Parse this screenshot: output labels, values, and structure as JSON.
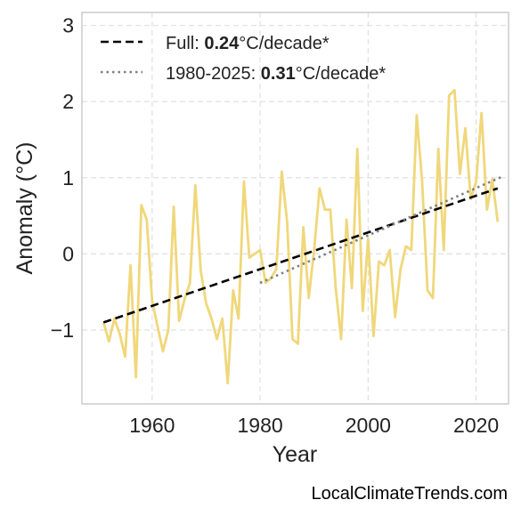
{
  "chart_data": {
    "type": "line",
    "xlabel": "Year",
    "ylabel": "Anomaly (°C)",
    "xlim": [
      1947,
      2026
    ],
    "ylim": [
      -1.97,
      3.17
    ],
    "xticks": [
      1960,
      1980,
      2000,
      2020
    ],
    "yticks": [
      3,
      2,
      1,
      0,
      -1
    ],
    "ytick_labels": [
      "3",
      "2",
      "1",
      "0",
      "−1"
    ],
    "grid": true,
    "legend_position": "top-left",
    "series": [
      {
        "style": "solid",
        "color": "#f0d77a",
        "x": [
          1951,
          1952,
          1953,
          1954,
          1955,
          1956,
          1957,
          1958,
          1959,
          1960,
          1961,
          1962,
          1963,
          1964,
          1965,
          1966,
          1967,
          1968,
          1969,
          1970,
          1971,
          1972,
          1973,
          1974,
          1975,
          1976,
          1977,
          1978,
          1979,
          1980,
          1981,
          1982,
          1983,
          1984,
          1985,
          1986,
          1987,
          1988,
          1989,
          1990,
          1991,
          1992,
          1993,
          1994,
          1995,
          1996,
          1997,
          1998,
          1999,
          2000,
          2001,
          2002,
          2003,
          2004,
          2005,
          2006,
          2007,
          2008,
          2009,
          2010,
          2011,
          2012,
          2013,
          2014,
          2015,
          2016,
          2017,
          2018,
          2019,
          2020,
          2021,
          2022,
          2023,
          2024
        ],
        "values": [
          -0.9,
          -1.15,
          -0.85,
          -1.05,
          -1.35,
          -0.15,
          -1.62,
          0.64,
          0.45,
          -0.62,
          -0.95,
          -1.28,
          -1.0,
          0.62,
          -0.88,
          -0.6,
          -0.38,
          0.9,
          -0.22,
          -0.65,
          -0.85,
          -1.12,
          -0.85,
          -1.7,
          -0.48,
          -0.85,
          0.95,
          -0.05,
          0.0,
          0.05,
          -0.38,
          -0.32,
          -0.2,
          1.08,
          0.42,
          -1.12,
          -1.18,
          0.35,
          -0.58,
          0.05,
          0.86,
          0.58,
          0.58,
          -0.45,
          -1.12,
          0.45,
          -0.45,
          1.38,
          -0.75,
          0.2,
          -1.08,
          -0.1,
          -0.15,
          0.05,
          -0.83,
          -0.2,
          0.1,
          0.05,
          1.82,
          0.95,
          -0.48,
          -0.58,
          1.38,
          0.05,
          2.08,
          2.15,
          1.05,
          1.65,
          0.72,
          0.95,
          1.85,
          0.58,
          0.98,
          0.42
        ]
      },
      {
        "name": "Full:",
        "style": "dashed",
        "color": "#000000",
        "x": [
          1951,
          2024
        ],
        "values": [
          -0.9,
          0.86
        ],
        "rate": "0.24",
        "unit": "°C/decade*"
      },
      {
        "name": "1980-2025:",
        "style": "dotted",
        "color": "#808080",
        "x": [
          1980,
          2025
        ],
        "values": [
          -0.38,
          1.02
        ],
        "rate": "0.31",
        "unit": "°C/decade*"
      }
    ]
  },
  "credit": "LocalClimateTrends.com"
}
